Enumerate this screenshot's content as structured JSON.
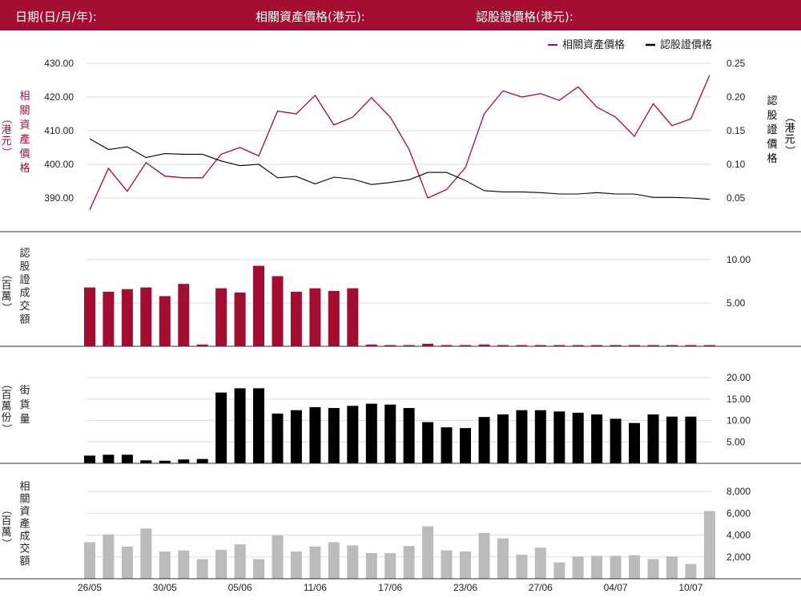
{
  "header": {
    "date_label": "日期(日/月/年):",
    "underlying_label": "相關資產價格(港元):",
    "warrant_label": "認股證價格(港元):"
  },
  "colors": {
    "header_bg": "#a50d30",
    "underlying": "#a50d30",
    "warrant": "#000000",
    "underlying_turnover": "#bbbbbb",
    "grid": "#dddddd"
  },
  "chart_data": [
    {
      "type": "line",
      "legend": [
        "相關資產價格",
        "認股證價格"
      ],
      "legend_position": "top-right",
      "left_axis_label": "相關資產價格",
      "left_axis_unit": "（港元）",
      "right_axis_label": "認股證價格",
      "right_axis_unit": "（港元）",
      "y_left_ticks": [
        "430.00",
        "420.00",
        "410.00",
        "400.00",
        "390.00"
      ],
      "y_left_range": [
        384,
        433
      ],
      "y_right_ticks": [
        "0.25",
        "0.20",
        "0.15",
        "0.10",
        "0.05"
      ],
      "y_right_range": [
        0.0,
        0.25
      ],
      "series": [
        {
          "name": "相關資產價格",
          "axis": "left",
          "values": [
            386.5,
            398.8,
            392.0,
            400.5,
            396.5,
            396.0,
            396.0,
            403.0,
            405.0,
            402.5,
            415.8,
            415.0,
            420.5,
            411.7,
            414.0,
            419.8,
            414.0,
            404.5,
            390.0,
            392.5,
            399.0,
            415.0,
            421.8,
            420.0,
            421.0,
            419.0,
            423.0,
            417.0,
            414.0,
            408.3,
            418.0,
            411.5,
            413.5,
            426.5
          ]
        },
        {
          "name": "認股證價格",
          "axis": "right",
          "values": [
            0.138,
            0.122,
            0.126,
            0.11,
            0.116,
            0.115,
            0.115,
            0.105,
            0.098,
            0.1,
            0.08,
            0.082,
            0.071,
            0.081,
            0.078,
            0.07,
            0.073,
            0.077,
            0.088,
            0.088,
            0.076,
            0.061,
            0.059,
            0.059,
            0.058,
            0.056,
            0.056,
            0.058,
            0.056,
            0.056,
            0.051,
            0.051,
            0.05,
            0.048
          ]
        }
      ]
    },
    {
      "type": "bar",
      "axis_label": "認股證成交額",
      "axis_unit": "（百萬）",
      "y_ticks": [
        "10.00",
        "5.00"
      ],
      "y_range": [
        0,
        11.3
      ],
      "values": [
        6.8,
        6.3,
        6.6,
        6.8,
        5.8,
        7.2,
        0.2,
        6.7,
        6.2,
        9.3,
        8.1,
        6.3,
        6.7,
        6.4,
        6.7,
        0.2,
        0.1,
        0.1,
        0.3,
        0.1,
        0.1,
        0.2,
        0.1,
        0.1,
        0.1,
        0.1,
        0.1,
        0.1,
        0.1,
        0.1,
        0.1,
        0.1,
        0.0,
        0.1
      ]
    },
    {
      "type": "bar",
      "axis_label": "街貨量",
      "axis_unit": "（百萬份）",
      "y_ticks": [
        "20.00",
        "15.00",
        "10.00",
        "5.00"
      ],
      "y_range": [
        0,
        20.4
      ],
      "values": [
        1.8,
        2.0,
        2.0,
        0.7,
        0.6,
        0.9,
        1.0,
        16.5,
        17.5,
        17.5,
        11.6,
        12.4,
        13.1,
        12.9,
        13.4,
        13.9,
        13.7,
        12.9,
        9.6,
        8.4,
        8.2,
        10.8,
        11.4,
        12.4,
        12.4,
        12.1,
        11.8,
        11.4,
        10.4,
        9.4,
        11.4,
        10.9,
        10.9,
        null
      ]
    },
    {
      "type": "bar",
      "axis_label": "相關資產成交額",
      "axis_unit": "（百萬）",
      "y_ticks": [
        "8,000",
        "6,000",
        "4,000",
        "2,000"
      ],
      "y_range": [
        0,
        8800
      ],
      "values": [
        3350,
        4050,
        2950,
        4600,
        2500,
        2580,
        1800,
        2650,
        3150,
        1800,
        3980,
        2500,
        2950,
        3350,
        3050,
        2350,
        2350,
        3000,
        4800,
        2600,
        2500,
        4200,
        3700,
        2200,
        2850,
        1500,
        2050,
        2100,
        2100,
        2150,
        1800,
        2050,
        1350,
        6200
      ]
    },
    {
      "type": "table",
      "x_tick_labels": [
        "26/05",
        "30/05",
        "05/06",
        "11/06",
        "17/06",
        "23/06",
        "27/06",
        "04/07",
        "10/07"
      ]
    }
  ]
}
